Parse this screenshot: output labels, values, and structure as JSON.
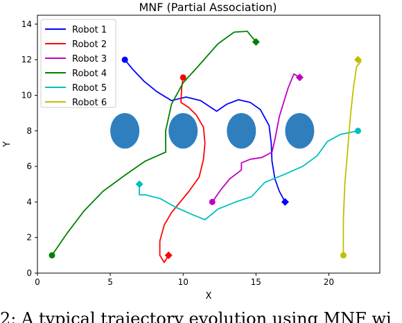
{
  "chart_data": {
    "type": "line",
    "title": "MNF (Partial Association)",
    "xlabel": "X",
    "ylabel": "Y",
    "xlim": [
      0,
      23.5
    ],
    "ylim": [
      0,
      14.5
    ],
    "xticks": [
      0,
      5,
      10,
      15,
      20
    ],
    "yticks": [
      0,
      2,
      4,
      6,
      8,
      10,
      12,
      14
    ],
    "grid": false,
    "legend": "top-left",
    "obstacles": [
      {
        "cx": 6,
        "cy": 8,
        "rx": 1,
        "ry": 1
      },
      {
        "cx": 10,
        "cy": 8,
        "rx": 1,
        "ry": 1
      },
      {
        "cx": 14,
        "cy": 8,
        "rx": 1,
        "ry": 1
      },
      {
        "cx": 18,
        "cy": 8,
        "rx": 1,
        "ry": 1
      }
    ],
    "obstacle_color": "#2f7fbf",
    "series": [
      {
        "name": "Robot 1",
        "color": "#0000ff",
        "start": [
          6,
          12
        ],
        "goal": [
          17,
          4
        ],
        "points": [
          [
            6,
            12
          ],
          [
            6.5,
            11.5
          ],
          [
            7.3,
            10.8
          ],
          [
            8.2,
            10.2
          ],
          [
            9.2,
            9.7
          ],
          [
            10.2,
            9.9
          ],
          [
            11.2,
            9.7
          ],
          [
            12.3,
            9.1
          ],
          [
            13,
            9.5
          ],
          [
            13.8,
            9.75
          ],
          [
            14.6,
            9.6
          ],
          [
            15.3,
            9.2
          ],
          [
            15.9,
            8.3
          ],
          [
            16.05,
            7.3
          ],
          [
            16.1,
            6.3
          ],
          [
            16.3,
            5.3
          ],
          [
            16.6,
            4.6
          ],
          [
            17,
            4
          ]
        ]
      },
      {
        "name": "Robot 2",
        "color": "#ff0000",
        "start": [
          10,
          11
        ],
        "goal": [
          9,
          1
        ],
        "points": [
          [
            10,
            11
          ],
          [
            9.9,
            10.4
          ],
          [
            9.85,
            9.6
          ],
          [
            10.4,
            9.3
          ],
          [
            10.9,
            8.9
          ],
          [
            11.4,
            8.2
          ],
          [
            11.5,
            7.3
          ],
          [
            11.4,
            6.4
          ],
          [
            11.1,
            5.4
          ],
          [
            10.4,
            4.6
          ],
          [
            9.8,
            4
          ],
          [
            9.2,
            3.4
          ],
          [
            8.7,
            2.7
          ],
          [
            8.4,
            1.8
          ],
          [
            8.4,
            1
          ],
          [
            8.7,
            0.6
          ],
          [
            9,
            1
          ]
        ]
      },
      {
        "name": "Robot 3",
        "color": "#c000c0",
        "start": [
          12,
          4
        ],
        "goal": [
          18,
          11
        ],
        "points": [
          [
            12,
            4
          ],
          [
            12.6,
            4.7
          ],
          [
            13.2,
            5.3
          ],
          [
            14,
            5.8
          ],
          [
            14,
            6.2
          ],
          [
            14.6,
            6.4
          ],
          [
            15.4,
            6.5
          ],
          [
            16.1,
            6.8
          ],
          [
            16.3,
            7.5
          ],
          [
            16.6,
            8.8
          ],
          [
            17.2,
            10.4
          ],
          [
            17.6,
            11.2
          ],
          [
            18,
            11
          ]
        ]
      },
      {
        "name": "Robot 4",
        "color": "#008000",
        "start": [
          1,
          1
        ],
        "goal": [
          15,
          13
        ],
        "points": [
          [
            1,
            1
          ],
          [
            2,
            2.2
          ],
          [
            3.2,
            3.5
          ],
          [
            4.5,
            4.6
          ],
          [
            6,
            5.5
          ],
          [
            7.4,
            6.3
          ],
          [
            8.8,
            6.8
          ],
          [
            8.8,
            8
          ],
          [
            9.2,
            9.5
          ],
          [
            10,
            10.7
          ],
          [
            11,
            11.6
          ],
          [
            12.4,
            12.9
          ],
          [
            13.5,
            13.55
          ],
          [
            14.4,
            13.6
          ],
          [
            14.7,
            13.3
          ],
          [
            15,
            13
          ]
        ]
      },
      {
        "name": "Robot 5",
        "color": "#00bfbf",
        "start": [
          22,
          8
        ],
        "goal": [
          7,
          5
        ],
        "points": [
          [
            22,
            8
          ],
          [
            20.8,
            7.8
          ],
          [
            19.9,
            7.4
          ],
          [
            19.2,
            6.6
          ],
          [
            18.2,
            6
          ],
          [
            16.8,
            5.5
          ],
          [
            15.6,
            5.1
          ],
          [
            14.7,
            4.3
          ],
          [
            13.6,
            4
          ],
          [
            12.4,
            3.6
          ],
          [
            11.5,
            3
          ],
          [
            10.6,
            3.3
          ],
          [
            9.5,
            3.7
          ],
          [
            8.4,
            4.2
          ],
          [
            7.4,
            4.4
          ],
          [
            7,
            4.4
          ],
          [
            7,
            5
          ]
        ]
      },
      {
        "name": "Robot 6",
        "color": "#bfbf00",
        "start": [
          21,
          1
        ],
        "goal": [
          22,
          12
        ],
        "points": [
          [
            21,
            1
          ],
          [
            21,
            3
          ],
          [
            21.1,
            5
          ],
          [
            21.3,
            7
          ],
          [
            21.5,
            9
          ],
          [
            21.7,
            10.5
          ],
          [
            21.9,
            11.6
          ],
          [
            22.2,
            11.9
          ],
          [
            22,
            12
          ]
        ]
      }
    ]
  },
  "caption": "2: A typical trajectory evolution using MNF wi"
}
